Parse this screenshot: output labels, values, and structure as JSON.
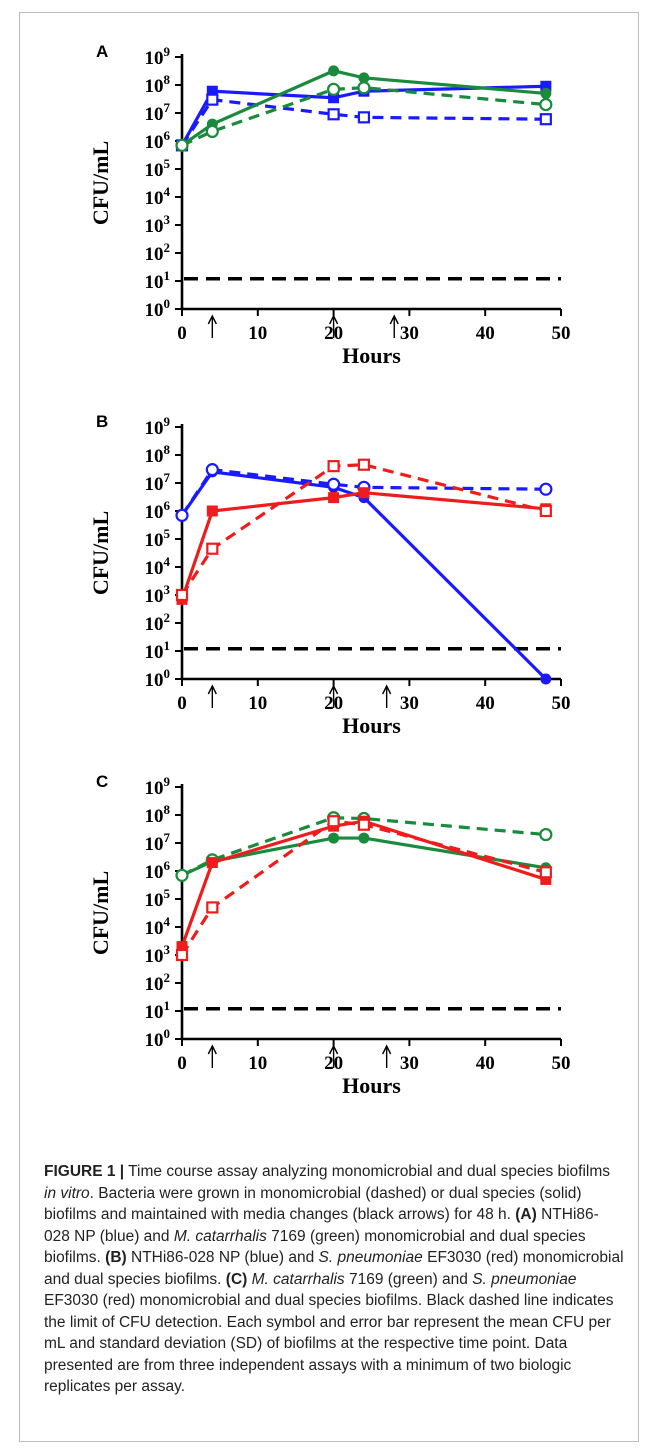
{
  "chart_data": [
    {
      "type": "line",
      "panel": "A",
      "xlabel": "Hours",
      "ylabel": "CFU/mL",
      "xlim": [
        0,
        50
      ],
      "ylim_log10": [
        0,
        9
      ],
      "yscale": "log",
      "xticks": [
        "0",
        "10",
        "20",
        "30",
        "40",
        "50"
      ],
      "yticks": [
        "10^0",
        "10^1",
        "10^2",
        "10^3",
        "10^4",
        "10^5",
        "10^6",
        "10^7",
        "10^8",
        "10^9"
      ],
      "media_change_arrows_hours": [
        4,
        20,
        28
      ],
      "detection_limit": 12,
      "series": [
        {
          "color": "#1a1aff",
          "dashed": false,
          "marker": "filled-square",
          "x": [
            0,
            4,
            20,
            24,
            48
          ],
          "y": [
            700000,
            60000000,
            35000000,
            60000000,
            90000000
          ]
        },
        {
          "color": "#1a1aff",
          "dashed": true,
          "marker": "open-square",
          "x": [
            0,
            4,
            20,
            24,
            48
          ],
          "y": [
            700000,
            30000000,
            9000000,
            7000000,
            6000000
          ]
        },
        {
          "color": "#1a8a3c",
          "dashed": false,
          "marker": "filled-circle",
          "x": [
            0,
            4,
            20,
            24,
            48
          ],
          "y": [
            700000,
            4000000,
            320000000,
            180000000,
            50000000
          ]
        },
        {
          "color": "#1a8a3c",
          "dashed": true,
          "marker": "open-circle",
          "x": [
            0,
            4,
            20,
            24,
            48
          ],
          "y": [
            700000,
            2200000,
            70000000,
            80000000,
            20000000
          ]
        }
      ]
    },
    {
      "type": "line",
      "panel": "B",
      "xlabel": "Hours",
      "ylabel": "CFU/mL",
      "xlim": [
        0,
        50
      ],
      "ylim_log10": [
        0,
        9
      ],
      "yscale": "log",
      "xticks": [
        "0",
        "10",
        "20",
        "30",
        "40",
        "50"
      ],
      "yticks": [
        "10^0",
        "10^1",
        "10^2",
        "10^3",
        "10^4",
        "10^5",
        "10^6",
        "10^7",
        "10^8",
        "10^9"
      ],
      "media_change_arrows_hours": [
        4,
        20,
        27
      ],
      "detection_limit": 12,
      "series": [
        {
          "color": "#1a1aff",
          "dashed": false,
          "marker": "filled-circle",
          "x": [
            0,
            4,
            20,
            24,
            48
          ],
          "y": [
            700000,
            25000000,
            7000000,
            3000000,
            1
          ]
        },
        {
          "color": "#1a1aff",
          "dashed": true,
          "marker": "open-circle",
          "x": [
            0,
            4,
            20,
            24,
            48
          ],
          "y": [
            700000,
            30000000,
            9000000,
            7000000,
            6000000
          ]
        },
        {
          "color": "#ee1c1c",
          "dashed": false,
          "marker": "filled-square",
          "x": [
            0,
            4,
            20,
            24,
            48
          ],
          "y": [
            700,
            1000000,
            3000000,
            4500000,
            1200000
          ]
        },
        {
          "color": "#ee1c1c",
          "dashed": true,
          "marker": "open-square",
          "x": [
            0,
            4,
            20,
            24,
            48
          ],
          "y": [
            1000,
            45000,
            40000000,
            45000000,
            1000000
          ]
        }
      ]
    },
    {
      "type": "line",
      "panel": "C",
      "xlabel": "Hours",
      "ylabel": "CFU/mL",
      "xlim": [
        0,
        50
      ],
      "ylim_log10": [
        0,
        9
      ],
      "yscale": "log",
      "xticks": [
        "0",
        "10",
        "20",
        "30",
        "40",
        "50"
      ],
      "yticks": [
        "10^0",
        "10^1",
        "10^2",
        "10^3",
        "10^4",
        "10^5",
        "10^6",
        "10^7",
        "10^8",
        "10^9"
      ],
      "media_change_arrows_hours": [
        4,
        20,
        27
      ],
      "detection_limit": 12,
      "series": [
        {
          "color": "#1a8a3c",
          "dashed": false,
          "marker": "filled-circle",
          "x": [
            0,
            4,
            20,
            24,
            48
          ],
          "y": [
            700000,
            2200000,
            15000000,
            15000000,
            1300000
          ]
        },
        {
          "color": "#1a8a3c",
          "dashed": true,
          "marker": "open-circle",
          "x": [
            0,
            4,
            20,
            24,
            48
          ],
          "y": [
            700000,
            2500000,
            80000000,
            75000000,
            20000000
          ]
        },
        {
          "color": "#ee1c1c",
          "dashed": false,
          "marker": "filled-square",
          "x": [
            0,
            4,
            20,
            24,
            48
          ],
          "y": [
            2000,
            2000000,
            40000000,
            60000000,
            500000
          ]
        },
        {
          "color": "#ee1c1c",
          "dashed": true,
          "marker": "open-square",
          "x": [
            0,
            4,
            20,
            24,
            48
          ],
          "y": [
            1000,
            50000,
            60000000,
            45000000,
            900000
          ]
        }
      ]
    }
  ],
  "caption": {
    "label": "FIGURE 1 |",
    "t1": " Time course assay analyzing monomicrobial and dual species biofilms ",
    "t1_italic": "in vitro",
    "t2": ". Bacteria were grown in monomicrobial (dashed) or dual species (solid) biofilms and maintained with media changes (black arrows) for 48 h. ",
    "a_label": "(A)",
    "a_t1": " NTHi86-028 NP (blue) and ",
    "a_italic": "M. catarrhalis",
    "a_t2": " 7169 (green) monomicrobial and dual species biofilms. ",
    "b_label": "(B)",
    "b_t1": " NTHi86-028 NP (blue) and ",
    "b_italic": "S. pneumoniae",
    "b_t2": " EF3030 (red) monomicrobial and dual species biofilms. ",
    "c_label": "(C)",
    "c_italic1": "M. catarrhalis",
    "c_t1": " 7169 (green) and ",
    "c_italic2": "S. pneumoniae",
    "c_t2": " EF3030 (red) monomicrobial and dual species biofilms. Black dashed line indicates the limit of CFU detection. Each symbol and error bar represent the mean CFU per mL and standard deviation (SD) of biofilms at the respective time point. Data presented are from three independent assays with a minimum of two biologic replicates per assay."
  }
}
